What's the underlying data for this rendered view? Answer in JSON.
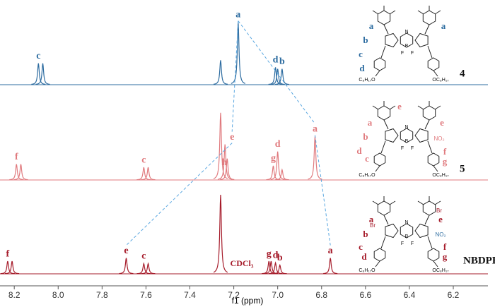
{
  "chart_data": {
    "type": "spectrum",
    "xlabel": "f1 (ppm)",
    "xlim": [
      8.265,
      6.01
    ],
    "xticks": [
      8.2,
      {
        "value": 8,
        "label": "8.0"
      },
      7.8,
      7.6,
      7.4,
      7.2,
      {
        "value": 7,
        "label": "7.0"
      },
      6.8,
      6.6,
      6.4,
      6.2
    ],
    "annotation": "CDCl₃",
    "series": [
      {
        "name": "4",
        "color": "#2d6ca0",
        "x": [
          8.09,
          8.07,
          7.26,
          7.18,
          7.01,
          7.0,
          6.98
        ],
        "values": [
          27,
          27,
          31,
          79,
          22,
          20,
          20
        ],
        "labels": [
          "c",
          null,
          null,
          "a",
          "d",
          null,
          "b"
        ],
        "structure_labels": [
          "a",
          "a",
          "b",
          "c",
          "d",
          "N",
          "B",
          "F",
          "F",
          "C₈H₁₇O",
          "OC₈H₁₇"
        ]
      },
      {
        "name": "5",
        "color": "#e07a7e",
        "x": [
          8.19,
          8.17,
          7.61,
          7.59,
          7.26,
          7.24,
          7.23,
          7.02,
          7.0,
          6.98,
          6.83
        ],
        "values": [
          20,
          20,
          16,
          16,
          85,
          45,
          27,
          18,
          36,
          13,
          55
        ],
        "labels": [
          "f",
          null,
          "c",
          null,
          null,
          "e",
          "h",
          "g",
          "d",
          null,
          "a"
        ],
        "structure_labels": [
          "a",
          "e",
          "e",
          "b",
          "NO₂",
          "d",
          "c",
          "f",
          "g",
          "N",
          "B",
          "F",
          "F",
          "C₈H₁₇O",
          "OC₈H₁₇"
        ]
      },
      {
        "name": "NBDPBr",
        "color": "#a61c2b",
        "x": [
          8.23,
          8.21,
          7.69,
          7.61,
          7.59,
          7.26,
          7.04,
          7.03,
          7.01,
          6.99,
          6.76
        ],
        "values": [
          16,
          16,
          20,
          13,
          13,
          100,
          16,
          16,
          14,
          11,
          20
        ],
        "labels": [
          "f",
          null,
          "e",
          "c",
          null,
          null,
          "g",
          null,
          "d",
          "b",
          "a"
        ],
        "structure_labels": [
          "a",
          "e",
          "Br",
          "Br",
          "b",
          "NO₂",
          "c",
          "d",
          "f",
          "g",
          "N",
          "B",
          "F",
          "F",
          "C₈H₁₇O",
          "OC₈H₁₇"
        ]
      }
    ]
  }
}
